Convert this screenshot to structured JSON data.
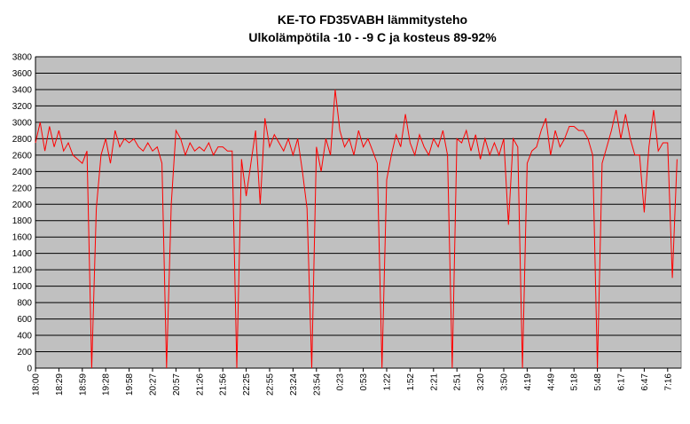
{
  "chart_data": {
    "type": "line",
    "title": "KE-TO FD35VABH lämmitysteho",
    "subtitle": "Ulkolämpötila  -10 - -9 C ja kosteus 89-92%",
    "categories": [
      "18:00",
      null,
      null,
      null,
      null,
      "18:29",
      null,
      null,
      null,
      null,
      "18:59",
      null,
      null,
      null,
      null,
      "19:28",
      null,
      null,
      null,
      null,
      "19:58",
      null,
      null,
      null,
      null,
      "20:27",
      null,
      null,
      null,
      null,
      "20:57",
      null,
      null,
      null,
      null,
      "21:26",
      null,
      null,
      null,
      null,
      "21:56",
      null,
      null,
      null,
      null,
      "22:25",
      null,
      null,
      null,
      null,
      "22:55",
      null,
      null,
      null,
      null,
      "23:24",
      null,
      null,
      null,
      null,
      "23:54",
      null,
      null,
      null,
      null,
      "0:23",
      null,
      null,
      null,
      null,
      "0:53",
      null,
      null,
      null,
      null,
      "1:22",
      null,
      null,
      null,
      null,
      "1:52",
      null,
      null,
      null,
      null,
      "2:21",
      null,
      null,
      null,
      null,
      "2:51",
      null,
      null,
      null,
      null,
      "3:20",
      null,
      null,
      null,
      null,
      "3:50",
      null,
      null,
      null,
      null,
      "4:19",
      null,
      null,
      null,
      null,
      "4:49",
      null,
      null,
      null,
      null,
      "5:18",
      null,
      null,
      null,
      null,
      "5:48",
      null,
      null,
      null,
      null,
      "6:17",
      null,
      null,
      null,
      null,
      "6:47",
      null,
      null,
      null,
      null,
      "7:16",
      null,
      null
    ],
    "values": [
      2750,
      3000,
      2650,
      2950,
      2700,
      2900,
      2650,
      2750,
      2600,
      2550,
      2500,
      2650,
      0,
      1950,
      2600,
      2800,
      2500,
      2900,
      2700,
      2800,
      2750,
      2800,
      2700,
      2650,
      2750,
      2650,
      2700,
      2500,
      0,
      2000,
      2900,
      2800,
      2600,
      2750,
      2650,
      2700,
      2650,
      2750,
      2600,
      2700,
      2700,
      2650,
      2650,
      0,
      2550,
      2100,
      2500,
      2900,
      2000,
      3050,
      2700,
      2850,
      2750,
      2650,
      2800,
      2600,
      2800,
      2400,
      1950,
      0,
      2700,
      2400,
      2800,
      2600,
      3400,
      2900,
      2700,
      2800,
      2600,
      2900,
      2700,
      2800,
      2650,
      2500,
      0,
      2300,
      2600,
      2850,
      2700,
      3100,
      2750,
      2600,
      2850,
      2700,
      2600,
      2800,
      2700,
      2900,
      2600,
      0,
      2800,
      2750,
      2900,
      2650,
      2850,
      2550,
      2800,
      2600,
      2750,
      2600,
      2800,
      1750,
      2800,
      2700,
      0,
      2500,
      2650,
      2700,
      2900,
      3050,
      2600,
      2900,
      2700,
      2800,
      2950,
      2950,
      2900,
      2900,
      2800,
      2600,
      0,
      2500,
      2700,
      2900,
      3150,
      2800,
      3100,
      2800,
      2600,
      2600,
      1900,
      2700,
      3150,
      2650,
      2750,
      2750,
      1100,
      2550
    ],
    "color": "#ff0000",
    "ylim": [
      0,
      3800
    ],
    "yticks": [
      0,
      200,
      400,
      600,
      800,
      1000,
      1200,
      1400,
      1600,
      1800,
      2000,
      2200,
      2400,
      2600,
      2800,
      3000,
      3200,
      3400,
      3600,
      3800
    ],
    "grid": true
  }
}
